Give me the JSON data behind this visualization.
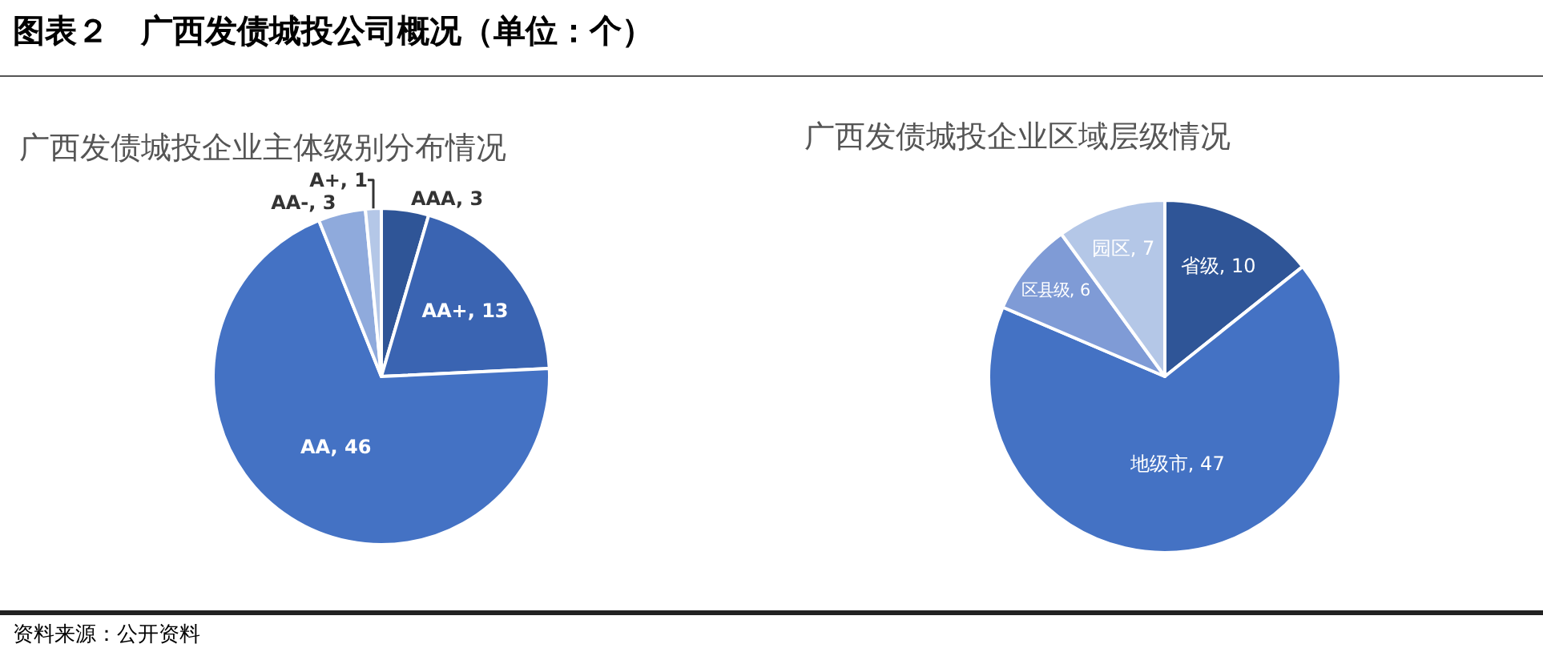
{
  "chart_data": [
    {
      "type": "pie",
      "title": "广西发债城投企业主体级别分布情况",
      "categories": [
        "AAA",
        "AA+",
        "AA",
        "AA-",
        "A+"
      ],
      "values": [
        3,
        13,
        46,
        3,
        1
      ],
      "colors": [
        "#2f5597",
        "#3a64b2",
        "#4472c4",
        "#8faadc",
        "#b4c7e7"
      ],
      "value_labels": [
        ", 3",
        ", 13",
        ", 46",
        ", 3",
        ", 1"
      ],
      "legend": false,
      "annotations": [
        "图表２　广西发债城投公司概况（单位：个）",
        "资料来源：公开资料"
      ]
    },
    {
      "type": "pie",
      "title": "广西发债城投企业区域层级情况",
      "categories": [
        "省级",
        "地级市",
        "区县级",
        "园区"
      ],
      "values": [
        10,
        47,
        6,
        7
      ],
      "colors": [
        "#2f5597",
        "#4472c4",
        "#7f9bd6",
        "#b4c7e7"
      ],
      "value_labels": [
        ", 10",
        ", 47",
        ", 6",
        ", 7"
      ],
      "legend": false
    }
  ]
}
